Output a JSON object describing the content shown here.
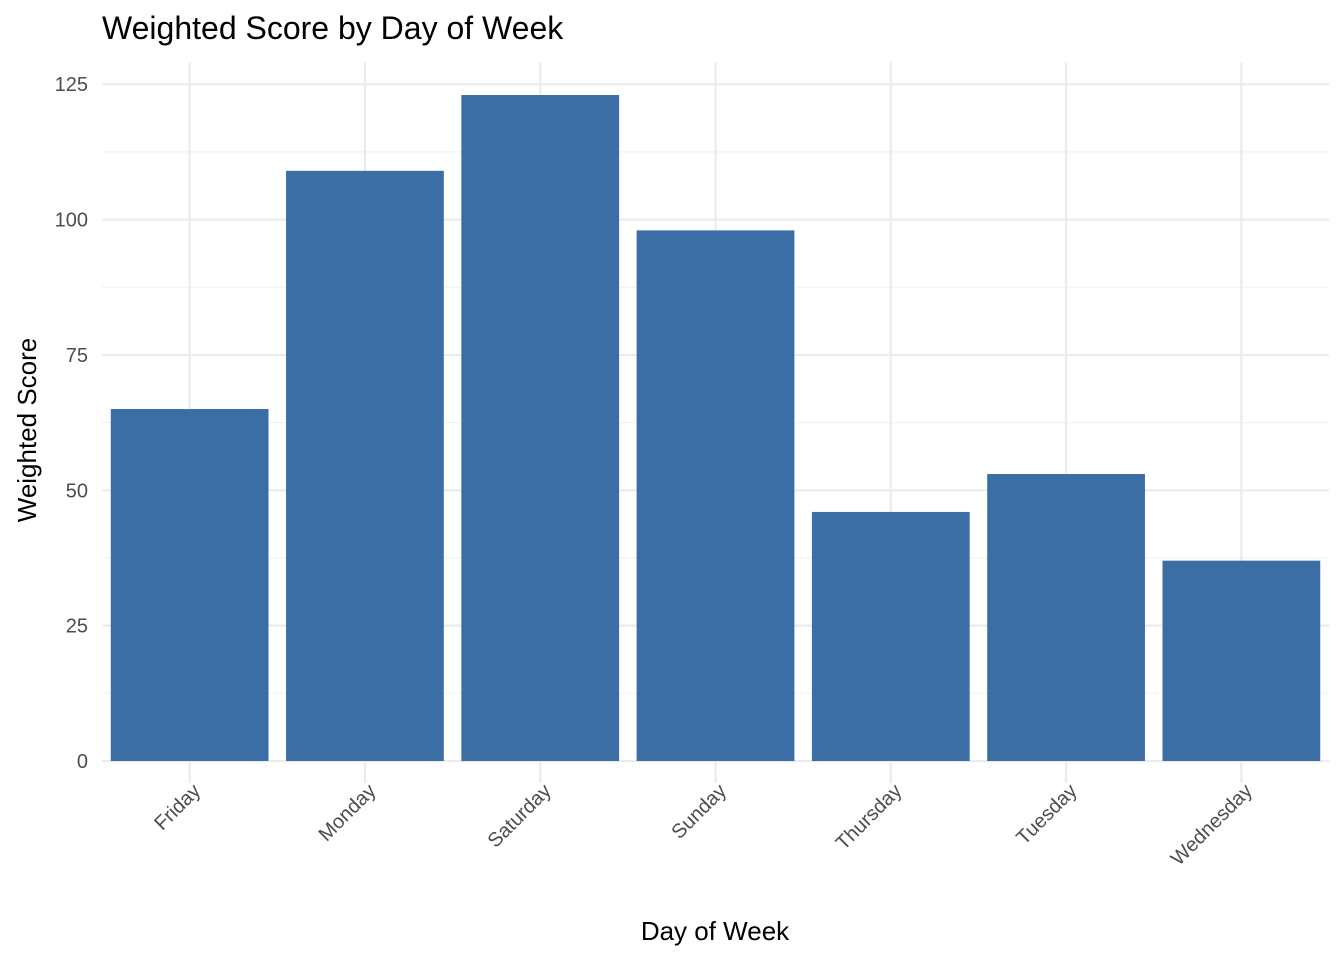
{
  "chart_data": {
    "type": "bar",
    "title": "Weighted Score by Day of Week",
    "xlabel": "Day of Week",
    "ylabel": "Weighted Score",
    "categories": [
      "Friday",
      "Monday",
      "Saturday",
      "Sunday",
      "Thursday",
      "Tuesday",
      "Wednesday"
    ],
    "values": [
      65,
      109,
      123,
      98,
      46,
      53,
      37
    ],
    "ylim": [
      0,
      129
    ],
    "yticks": [
      0,
      25,
      50,
      75,
      100,
      125
    ],
    "grid": true,
    "legend": "none",
    "bar_color": "#3a6ea5",
    "grid_color": "#ebebeb"
  }
}
